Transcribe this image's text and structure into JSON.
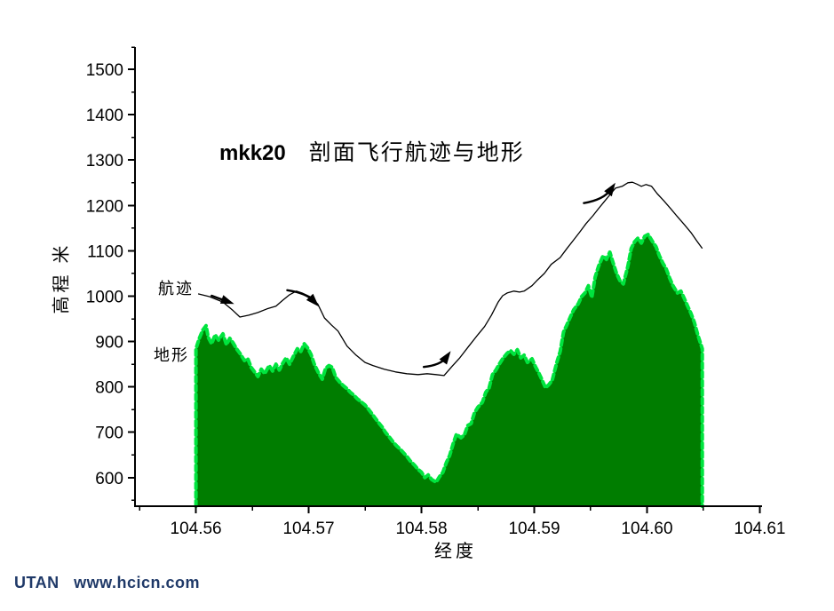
{
  "title": {
    "prefix": "mkk20",
    "main": "剖面飞行航迹与地形"
  },
  "labels": {
    "flight": "航迹",
    "terrain": "地形"
  },
  "watermark": {
    "text": "UTAN   www.hcicn.com",
    "color": "#1f3968"
  },
  "colors": {
    "terrain_fill": "#007d00",
    "terrain_edge": "#00e43e",
    "flight_line": "#000000",
    "axis": "#000000"
  },
  "chart_data": {
    "type": "area+line",
    "title": "mkk20 剖面飞行航迹与地形",
    "xlabel": "经度",
    "ylabel": "高程 米",
    "xlim": [
      104.5546,
      104.6102
    ],
    "ylim": [
      537,
      1549
    ],
    "grid": false,
    "x_ticks": [
      104.56,
      104.57,
      104.58,
      104.59,
      104.6,
      104.61
    ],
    "x_tick_labels": [
      "104.56",
      "104.57",
      "104.58",
      "104.59",
      "104.60",
      "104.61"
    ],
    "x_minor_ticks": [
      104.555,
      104.565,
      104.575,
      104.585,
      104.595,
      104.605
    ],
    "y_ticks": [
      600,
      700,
      800,
      900,
      1000,
      1100,
      1200,
      1300,
      1400,
      1500
    ],
    "y_tick_labels": [
      "600",
      "700",
      "800",
      "900",
      "1000",
      "1100",
      "1200",
      "1300",
      "1400",
      "1500"
    ],
    "y_minor_ticks": [
      550,
      650,
      750,
      850,
      950,
      1050,
      1150,
      1250,
      1350,
      1450,
      1550
    ],
    "series": [
      {
        "name": "地形",
        "type": "area",
        "x": [
          104.56,
          104.5603,
          104.5606,
          104.5609,
          104.5611,
          104.5614,
          104.5617,
          104.562,
          104.5624,
          104.5627,
          104.563,
          104.5633,
          104.5636,
          104.5639,
          104.5643,
          104.5646,
          104.5649,
          104.5652,
          104.5655,
          104.5658,
          104.5661,
          104.5665,
          104.5668,
          104.5671,
          104.5674,
          104.5677,
          104.568,
          104.5683,
          104.5687,
          104.569,
          104.5693,
          104.5696,
          104.5699,
          104.5702,
          104.5705,
          104.5709,
          104.5712,
          104.5715,
          104.5718,
          104.5721,
          104.5724,
          104.5728,
          104.5731,
          104.5734,
          104.5737,
          104.574,
          104.5743,
          104.5746,
          104.575,
          104.5753,
          104.5756,
          104.5759,
          104.5762,
          104.5765,
          104.5768,
          104.5772,
          104.5775,
          104.5778,
          104.5781,
          104.5784,
          104.5787,
          104.579,
          104.5794,
          104.5797,
          104.58,
          104.5803,
          104.5806,
          104.5809,
          104.5813,
          104.5816,
          104.5819,
          104.5822,
          104.5825,
          104.5828,
          104.5831,
          104.5835,
          104.5838,
          104.5841,
          104.5844,
          104.5847,
          104.585,
          104.5854,
          104.5857,
          104.586,
          104.5863,
          104.5866,
          104.5869,
          104.5872,
          104.5876,
          104.5879,
          104.5882,
          104.5885,
          104.5888,
          104.5891,
          104.5894,
          104.5898,
          104.5901,
          104.5904,
          104.5907,
          104.591,
          104.5913,
          104.5916,
          104.592,
          104.5923,
          104.5926,
          104.5929,
          104.5932,
          104.5935,
          104.5939,
          104.5942,
          104.5945,
          104.5948,
          104.5951,
          104.5954,
          104.5957,
          104.5961,
          104.5964,
          104.5967,
          104.597,
          104.5973,
          104.5976,
          104.5979,
          104.5983,
          104.5986,
          104.5989,
          104.5992,
          104.5995,
          104.5998,
          104.6001,
          104.6005,
          104.6008,
          104.6011,
          104.6014,
          104.6017,
          104.602,
          104.6023,
          104.6027,
          104.603,
          104.6033,
          104.6036,
          104.6039,
          104.6042,
          104.6045,
          104.6049
        ],
        "y": [
          884,
          907,
          925,
          935,
          909,
          895,
          915,
          903,
          917,
          893,
          907,
          897,
          884,
          874,
          858,
          862,
          843,
          833,
          823,
          839,
          829,
          847,
          835,
          850,
          837,
          852,
          864,
          850,
          870,
          884,
          878,
          895,
          886,
          872,
          850,
          829,
          817,
          841,
          847,
          843,
          821,
          809,
          802,
          796,
          788,
          782,
          774,
          768,
          760,
          751,
          741,
          731,
          721,
          712,
          700,
          688,
          678,
          670,
          663,
          655,
          647,
          637,
          627,
          618,
          612,
          600,
          606,
          596,
          590,
          602,
          612,
          633,
          649,
          674,
          696,
          688,
          694,
          715,
          719,
          743,
          755,
          766,
          788,
          798,
          827,
          837,
          850,
          862,
          874,
          880,
          872,
          882,
          864,
          870,
          854,
          862,
          845,
          831,
          815,
          798,
          805,
          815,
          854,
          878,
          921,
          937,
          954,
          970,
          983,
          999,
          1007,
          1023,
          997,
          1042,
          1066,
          1089,
          1081,
          1097,
          1073,
          1050,
          1034,
          1027,
          1066,
          1105,
          1120,
          1128,
          1117,
          1132,
          1136,
          1120,
          1109,
          1089,
          1073,
          1060,
          1040,
          1023,
          1007,
          1011,
          995,
          978,
          962,
          942,
          915,
          884
        ]
      },
      {
        "name": "航迹",
        "type": "line",
        "x": [
          104.5602,
          104.5612,
          104.5624,
          104.5633,
          104.5639,
          104.5647,
          104.5655,
          104.5663,
          104.5671,
          104.5677,
          104.5683,
          104.5689,
          104.5694,
          104.5701,
          104.5708,
          104.5714,
          104.572,
          104.5726,
          104.5734,
          104.5742,
          104.575,
          104.5757,
          104.5767,
          104.5777,
          104.5787,
          104.5797,
          104.5805,
          104.5813,
          104.582,
          104.5827,
          104.5834,
          104.5842,
          104.585,
          104.5856,
          104.5862,
          104.5868,
          104.5872,
          104.5876,
          104.5882,
          104.5887,
          104.5891,
          104.5898,
          104.5903,
          104.5909,
          104.5915,
          104.5923,
          104.5929,
          104.5935,
          104.594,
          104.5946,
          104.5952,
          104.5957,
          104.5962,
          104.5968,
          104.5972,
          104.5978,
          104.5983,
          104.5987,
          104.5991,
          104.5995,
          104.5999,
          104.6004,
          104.6009,
          104.6015,
          104.6021,
          104.6027,
          104.6033,
          104.6039,
          104.6044,
          104.6049
        ],
        "y": [
          1005,
          999,
          987,
          968,
          954,
          958,
          964,
          972,
          978,
          991,
          1003,
          1011,
          1007,
          999,
          983,
          952,
          937,
          923,
          890,
          870,
          854,
          847,
          839,
          833,
          829,
          827,
          829,
          827,
          825,
          845,
          864,
          890,
          915,
          933,
          958,
          987,
          1001,
          1007,
          1011,
          1009,
          1011,
          1023,
          1036,
          1050,
          1070,
          1085,
          1105,
          1124,
          1140,
          1160,
          1177,
          1193,
          1208,
          1226,
          1238,
          1242,
          1250,
          1251,
          1247,
          1242,
          1246,
          1242,
          1226,
          1210,
          1193,
          1175,
          1158,
          1140,
          1122,
          1105
        ]
      }
    ],
    "arrows": [
      {
        "tail": [
          104.5614,
          1001
        ],
        "tip": [
          104.5634,
          983
        ],
        "bulge": 0
      },
      {
        "tail": [
          104.5681,
          1013
        ],
        "tip": [
          104.5709,
          977
        ],
        "bulge": -7
      },
      {
        "tail": [
          104.5802,
          844
        ],
        "tip": [
          104.5826,
          879
        ],
        "bulge": 8
      },
      {
        "tail": [
          104.5944,
          1205
        ],
        "tip": [
          104.5972,
          1250
        ],
        "bulge": 9
      }
    ]
  }
}
